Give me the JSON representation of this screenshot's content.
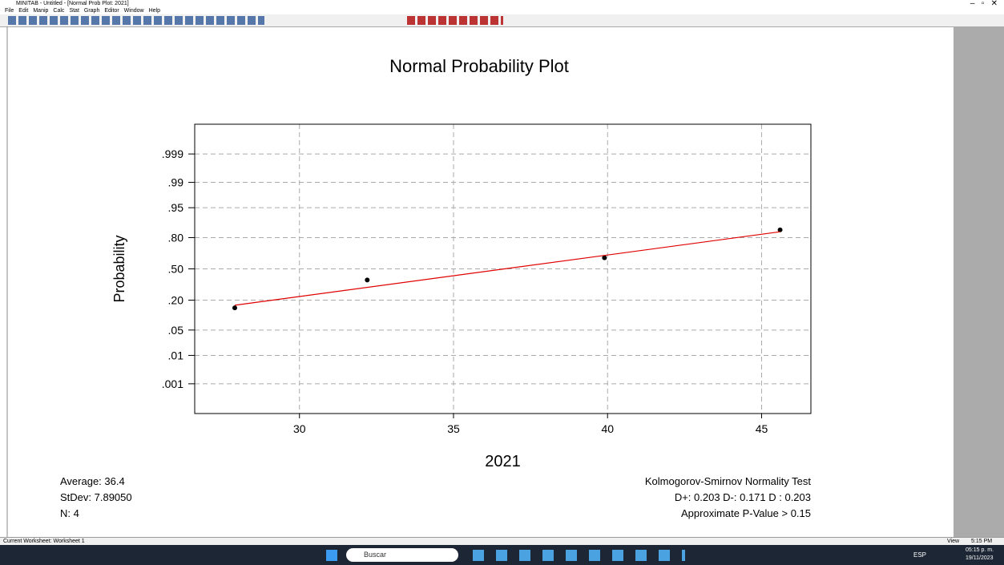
{
  "window": {
    "title": "MINITAB - Untitled - [Normal Prob Plot: 2021]",
    "menu": [
      "File",
      "Edit",
      "Manip",
      "Calc",
      "Stat",
      "Graph",
      "Editor",
      "Window",
      "Help"
    ],
    "stats": [
      "Average: 36.4",
      "StDev: 7.89050",
      "N: 4"
    ],
    "test": [
      "Kolmogorov-Smirnov Normality Test",
      "D+: 0.203  D-: 0.171  D : 0.203",
      "Approximate P-Value > 0.15"
    ],
    "status": "Current Worksheet: Worksheet 1",
    "status_right": [
      "View",
      "5:15 PM"
    ],
    "taskbar": {
      "search": "Buscar",
      "lang": "ESP",
      "time": "05:15 p. m.",
      "date": "19/11/2023"
    }
  },
  "chart_data": {
    "type": "scatter",
    "title": "Normal Probability Plot",
    "xlabel": "2021",
    "ylabel": "Probability",
    "yscale": "normal-probability",
    "grid": true,
    "xlim": [
      26.6,
      46.6
    ],
    "xticks": [
      30,
      35,
      40,
      45
    ],
    "ylim": [
      5e-05,
      0.99995
    ],
    "yticks": [
      {
        "value": 0.999,
        "label": ".999"
      },
      {
        "value": 0.99,
        "label": ".99"
      },
      {
        "value": 0.95,
        "label": ".95"
      },
      {
        "value": 0.8,
        "label": ".80"
      },
      {
        "value": 0.5,
        "label": ".50"
      },
      {
        "value": 0.2,
        "label": ".20"
      },
      {
        "value": 0.05,
        "label": ".05"
      },
      {
        "value": 0.01,
        "label": ".01"
      },
      {
        "value": 0.001,
        "label": ".001"
      }
    ],
    "series": [
      {
        "color": "#000000",
        "x": [
          27.9,
          32.2,
          39.9,
          45.6
        ],
        "values": [
          0.147,
          0.382,
          0.618,
          0.853
        ]
      },
      {
        "type": "line",
        "color": "#e00000",
        "x": [
          27.9,
          45.6
        ],
        "values": [
          0.164,
          0.841
        ]
      }
    ]
  }
}
